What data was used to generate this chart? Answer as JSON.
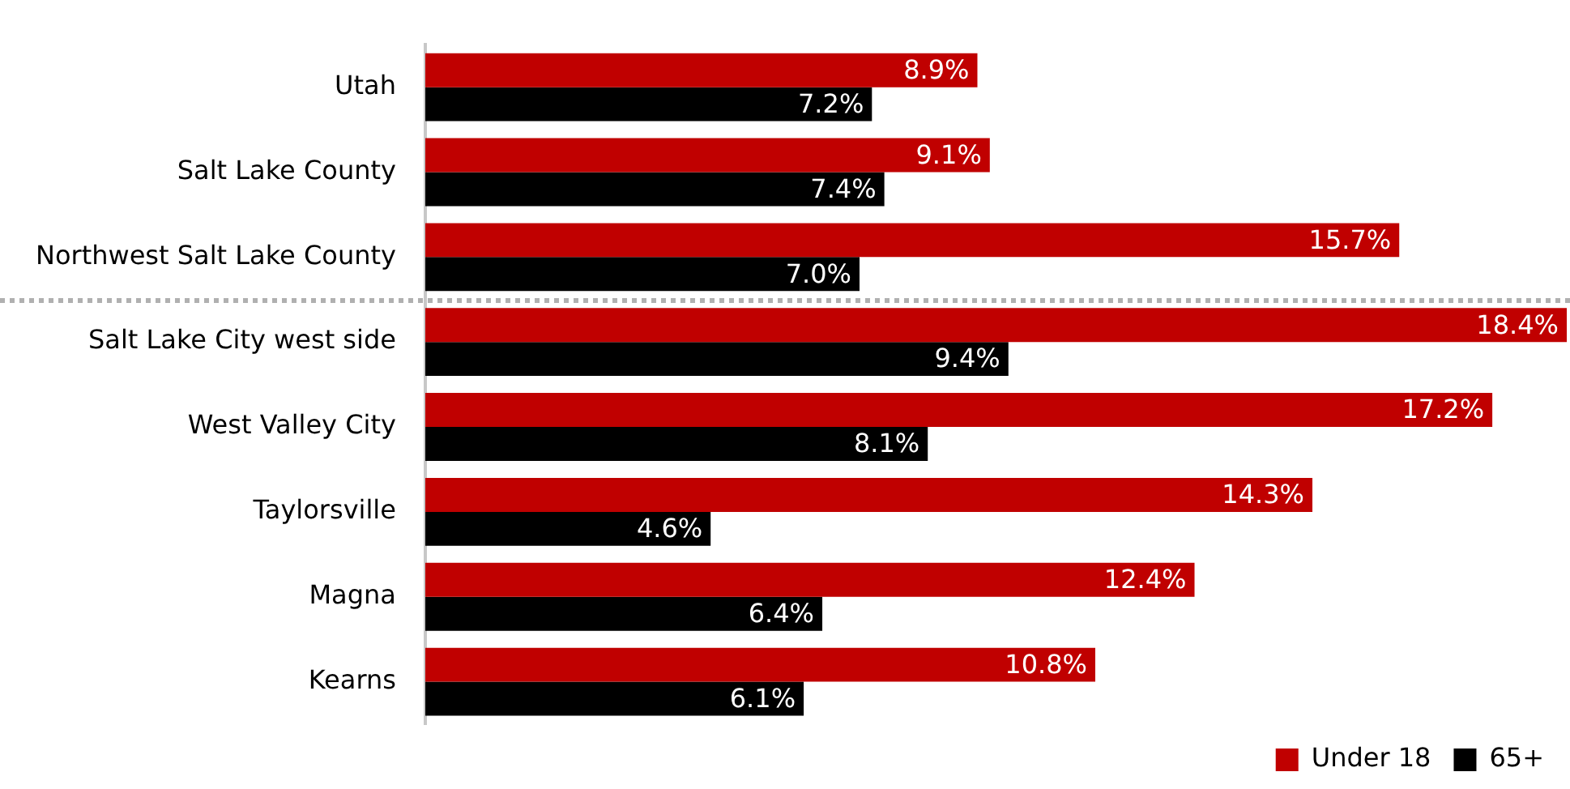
{
  "chart_data": {
    "type": "bar",
    "orientation": "horizontal",
    "categories": [
      "Utah",
      "Salt Lake County",
      "Northwest Salt Lake County",
      "Salt Lake City west side",
      "West Valley City",
      "Taylorsville",
      "Magna",
      "Kearns"
    ],
    "series": [
      {
        "name": "Under 18",
        "color": "#c00000",
        "values": [
          8.9,
          9.1,
          15.7,
          18.4,
          17.2,
          14.3,
          12.4,
          10.8
        ],
        "value_labels": [
          "8.9%",
          "9.1%",
          "15.7%",
          "18.4%",
          "17.2%",
          "14.3%",
          "12.4%",
          "10.8%"
        ]
      },
      {
        "name": "65+",
        "color": "#000000",
        "values": [
          7.2,
          7.4,
          7.0,
          9.4,
          8.1,
          4.6,
          6.4,
          6.1
        ],
        "value_labels": [
          "7.2%",
          "7.4%",
          "7.0%",
          "9.4%",
          "8.1%",
          "4.6%",
          "6.4%",
          "6.1%"
        ]
      }
    ],
    "xlim": [
      0,
      18.4
    ],
    "tick_labels": "y",
    "grid": false,
    "legend": "bottom right"
  }
}
